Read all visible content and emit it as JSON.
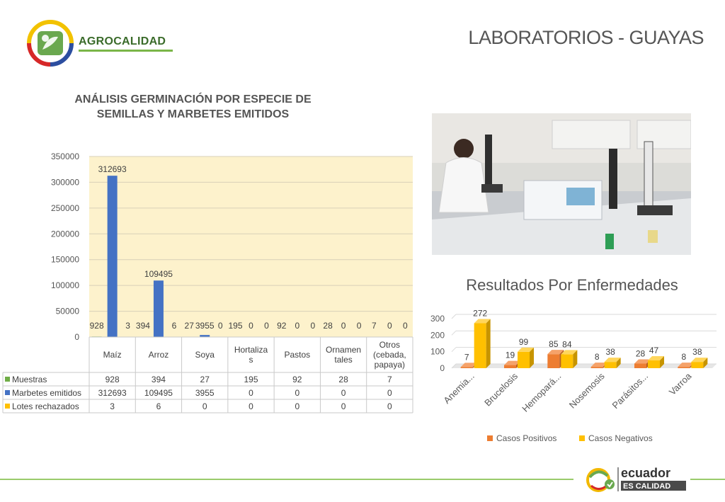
{
  "header": {
    "brand": "AGROCALIDAD",
    "title": "LABORATORIOS - GUAYAS"
  },
  "footer": {
    "brand_line1": "ecuador",
    "brand_line2": "ES CALIDAD"
  },
  "colors": {
    "muestras": "#70ad47",
    "marbetes": "#4472c4",
    "lotes": "#ffc000",
    "positivos": "#ed7d31",
    "negativos": "#ffc000",
    "plot_bg": "#fdf2cc"
  },
  "chart_data": [
    {
      "type": "bar",
      "title": "ANÁLISIS GERMINACIÓN POR ESPECIE DE SEMILLAS Y MARBETES EMITIDOS",
      "categories": [
        "Maíz",
        "Arroz",
        "Soya",
        "Hortalizas",
        "Pastos",
        "Ornamentales",
        "Otros (cebada, papaya)"
      ],
      "category_labels": [
        [
          "Maíz"
        ],
        [
          "Arroz"
        ],
        [
          "Soya"
        ],
        [
          "Hortaliza",
          "s"
        ],
        [
          "Pastos"
        ],
        [
          "Ornamen",
          "tales"
        ],
        [
          "Otros",
          "(cebada,",
          "papaya)"
        ]
      ],
      "series": [
        {
          "name": "Muestras",
          "values": [
            928,
            394,
            27,
            195,
            92,
            28,
            7
          ]
        },
        {
          "name": "Marbetes emitidos",
          "values": [
            312693,
            109495,
            3955,
            0,
            0,
            0,
            0
          ]
        },
        {
          "name": "Lotes rechazados",
          "values": [
            3,
            6,
            0,
            0,
            0,
            0,
            0
          ]
        }
      ],
      "ylim": [
        0,
        350000
      ],
      "yticks": [
        0,
        50000,
        100000,
        150000,
        200000,
        250000,
        300000,
        350000
      ],
      "grid": true,
      "legend": "data-table"
    },
    {
      "type": "bar",
      "title": "Resultados Por Enfermedades",
      "categories": [
        "Anemia...",
        "Brucelosis",
        "Hemopará...",
        "Nosemosis",
        "Parásitos...",
        "Varroa"
      ],
      "series": [
        {
          "name": "Casos Positivos",
          "values": [
            7,
            19,
            85,
            8,
            28,
            8
          ]
        },
        {
          "name": "Casos Negativos",
          "values": [
            272,
            99,
            84,
            38,
            47,
            38
          ]
        }
      ],
      "ylim": [
        0,
        300
      ],
      "yticks": [
        0,
        100,
        200,
        300
      ],
      "grid": true,
      "legend": "bottom"
    }
  ]
}
